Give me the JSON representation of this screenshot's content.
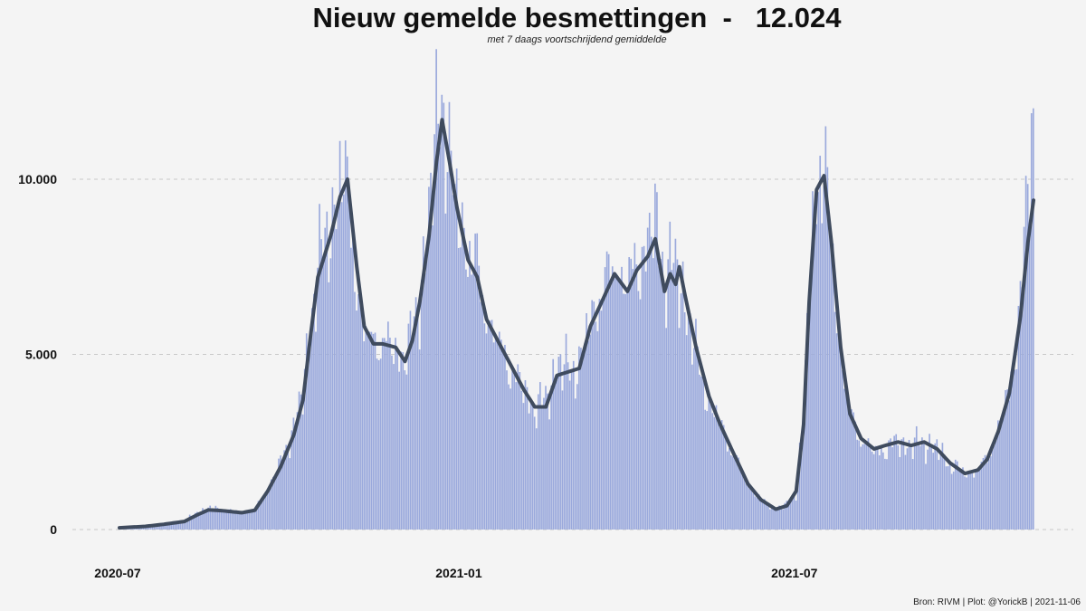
{
  "title": "Nieuw gemelde besmettingen  -   12.024",
  "subtitle": "met 7 daags voortschrijdend gemiddelde",
  "source": "Bron: RIVM | Plot: @YorickB |  2021-11-06",
  "colors": {
    "bars": "#9aa9dc",
    "line": "#3f4b5e",
    "background": "#f4f4f4",
    "grid": "#c8c8c8"
  },
  "chart_data": {
    "type": "bar",
    "title": "Nieuw gemelde besmettingen  -   12.024",
    "subtitle": "met 7 daags voortschrijdend gemiddelde",
    "xlabel": "",
    "ylabel": "",
    "x_range": [
      "2020-07-01",
      "2021-11-06"
    ],
    "ylim": [
      0,
      13500
    ],
    "grid": "horizontal dashed",
    "x_ticks": [
      {
        "date": "2020-07-01",
        "label": "2020-07"
      },
      {
        "date": "2021-01-01",
        "label": "2021-01"
      },
      {
        "date": "2021-07-01",
        "label": "2021-07"
      }
    ],
    "y_ticks": [
      {
        "value": 0,
        "label": "0"
      },
      {
        "value": 5000,
        "label": "5.000"
      },
      {
        "value": 10000,
        "label": "10.000"
      }
    ],
    "series": [
      {
        "kind": "bar",
        "description": "daily reported infections (approximate daily values)",
        "points": [
          [
            "2020-07-01",
            60
          ],
          [
            "2020-07-15",
            90
          ],
          [
            "2020-07-25",
            150
          ],
          [
            "2020-08-05",
            250
          ],
          [
            "2020-08-12",
            480
          ],
          [
            "2020-08-18",
            620
          ],
          [
            "2020-08-25",
            560
          ],
          [
            "2020-09-05",
            500
          ],
          [
            "2020-09-12",
            560
          ],
          [
            "2020-09-19",
            1150
          ],
          [
            "2020-09-26",
            1900
          ],
          [
            "2020-10-03",
            2900
          ],
          [
            "2020-10-08",
            3900
          ],
          [
            "2020-10-12",
            5800
          ],
          [
            "2020-10-16",
            7600
          ],
          [
            "2020-10-23",
            8600
          ],
          [
            "2020-10-28",
            10200
          ],
          [
            "2020-11-02",
            9400
          ],
          [
            "2020-11-06",
            7000
          ],
          [
            "2020-11-10",
            5600
          ],
          [
            "2020-11-15",
            5500
          ],
          [
            "2020-11-20",
            5300
          ],
          [
            "2020-11-27",
            5200
          ],
          [
            "2020-12-02",
            4900
          ],
          [
            "2020-12-06",
            5600
          ],
          [
            "2020-12-10",
            6700
          ],
          [
            "2020-12-15",
            8900
          ],
          [
            "2020-12-19",
            11500
          ],
          [
            "2020-12-22",
            12500
          ],
          [
            "2020-12-26",
            10500
          ],
          [
            "2020-12-30",
            9200
          ],
          [
            "2021-01-05",
            8000
          ],
          [
            "2021-01-10",
            7500
          ],
          [
            "2021-01-15",
            6100
          ],
          [
            "2021-01-22",
            5300
          ],
          [
            "2021-01-28",
            4600
          ],
          [
            "2021-02-04",
            4000
          ],
          [
            "2021-02-10",
            3500
          ],
          [
            "2021-02-16",
            3700
          ],
          [
            "2021-02-22",
            4700
          ],
          [
            "2021-02-28",
            4600
          ],
          [
            "2021-03-06",
            4700
          ],
          [
            "2021-03-12",
            5900
          ],
          [
            "2021-03-19",
            6900
          ],
          [
            "2021-03-25",
            7600
          ],
          [
            "2021-04-01",
            7000
          ],
          [
            "2021-04-06",
            7600
          ],
          [
            "2021-04-12",
            8100
          ],
          [
            "2021-04-16",
            8900
          ],
          [
            "2021-04-21",
            7400
          ],
          [
            "2021-04-26",
            7600
          ],
          [
            "2021-05-02",
            6600
          ],
          [
            "2021-05-08",
            5000
          ],
          [
            "2021-05-15",
            3700
          ],
          [
            "2021-05-21",
            3000
          ],
          [
            "2021-05-28",
            2200
          ],
          [
            "2021-06-05",
            1300
          ],
          [
            "2021-06-12",
            850
          ],
          [
            "2021-06-20",
            600
          ],
          [
            "2021-06-26",
            700
          ],
          [
            "2021-07-01",
            1100
          ],
          [
            "2021-07-05",
            3200
          ],
          [
            "2021-07-08",
            6800
          ],
          [
            "2021-07-12",
            10000
          ],
          [
            "2021-07-16",
            10400
          ],
          [
            "2021-07-20",
            8200
          ],
          [
            "2021-07-25",
            5100
          ],
          [
            "2021-07-30",
            3300
          ],
          [
            "2021-08-05",
            2600
          ],
          [
            "2021-08-12",
            2200
          ],
          [
            "2021-08-18",
            2300
          ],
          [
            "2021-08-25",
            2500
          ],
          [
            "2021-09-01",
            2400
          ],
          [
            "2021-09-08",
            2500
          ],
          [
            "2021-09-15",
            2300
          ],
          [
            "2021-09-22",
            1900
          ],
          [
            "2021-09-30",
            1600
          ],
          [
            "2021-10-07",
            1700
          ],
          [
            "2021-10-12",
            2000
          ],
          [
            "2021-10-18",
            2900
          ],
          [
            "2021-10-24",
            3900
          ],
          [
            "2021-10-30",
            6500
          ],
          [
            "2021-11-03",
            9800
          ],
          [
            "2021-11-06",
            12024
          ]
        ]
      },
      {
        "kind": "line",
        "description": "7-day rolling average",
        "points": [
          [
            "2020-07-01",
            50
          ],
          [
            "2020-07-15",
            90
          ],
          [
            "2020-07-25",
            150
          ],
          [
            "2020-08-05",
            230
          ],
          [
            "2020-08-12",
            420
          ],
          [
            "2020-08-18",
            560
          ],
          [
            "2020-08-25",
            540
          ],
          [
            "2020-09-05",
            480
          ],
          [
            "2020-09-12",
            550
          ],
          [
            "2020-09-19",
            1100
          ],
          [
            "2020-09-26",
            1800
          ],
          [
            "2020-10-03",
            2700
          ],
          [
            "2020-10-08",
            3700
          ],
          [
            "2020-10-12",
            5500
          ],
          [
            "2020-10-16",
            7200
          ],
          [
            "2020-10-23",
            8400
          ],
          [
            "2020-10-28",
            9500
          ],
          [
            "2020-11-01",
            10000
          ],
          [
            "2020-11-06",
            7500
          ],
          [
            "2020-11-10",
            5800
          ],
          [
            "2020-11-15",
            5300
          ],
          [
            "2020-11-20",
            5300
          ],
          [
            "2020-11-27",
            5200
          ],
          [
            "2020-12-02",
            4800
          ],
          [
            "2020-12-06",
            5400
          ],
          [
            "2020-12-10",
            6500
          ],
          [
            "2020-12-15",
            8400
          ],
          [
            "2020-12-19",
            10500
          ],
          [
            "2020-12-22",
            11700
          ],
          [
            "2020-12-26",
            10500
          ],
          [
            "2020-12-30",
            9200
          ],
          [
            "2021-01-05",
            7700
          ],
          [
            "2021-01-10",
            7200
          ],
          [
            "2021-01-15",
            6000
          ],
          [
            "2021-01-22",
            5300
          ],
          [
            "2021-01-28",
            4700
          ],
          [
            "2021-02-04",
            4000
          ],
          [
            "2021-02-10",
            3500
          ],
          [
            "2021-02-16",
            3500
          ],
          [
            "2021-02-22",
            4400
          ],
          [
            "2021-02-28",
            4500
          ],
          [
            "2021-03-06",
            4600
          ],
          [
            "2021-03-12",
            5800
          ],
          [
            "2021-03-19",
            6600
          ],
          [
            "2021-03-25",
            7300
          ],
          [
            "2021-04-01",
            6800
          ],
          [
            "2021-04-06",
            7400
          ],
          [
            "2021-04-12",
            7800
          ],
          [
            "2021-04-16",
            8300
          ],
          [
            "2021-04-21",
            6800
          ],
          [
            "2021-04-24",
            7300
          ],
          [
            "2021-04-27",
            7000
          ],
          [
            "2021-04-29",
            7500
          ],
          [
            "2021-05-02",
            6700
          ],
          [
            "2021-05-08",
            5200
          ],
          [
            "2021-05-15",
            3800
          ],
          [
            "2021-05-21",
            3000
          ],
          [
            "2021-05-28",
            2200
          ],
          [
            "2021-06-05",
            1300
          ],
          [
            "2021-06-12",
            850
          ],
          [
            "2021-06-20",
            580
          ],
          [
            "2021-06-26",
            680
          ],
          [
            "2021-07-01",
            1100
          ],
          [
            "2021-07-05",
            3000
          ],
          [
            "2021-07-08",
            6500
          ],
          [
            "2021-07-12",
            9700
          ],
          [
            "2021-07-16",
            10100
          ],
          [
            "2021-07-20",
            8200
          ],
          [
            "2021-07-25",
            5200
          ],
          [
            "2021-07-30",
            3300
          ],
          [
            "2021-08-05",
            2600
          ],
          [
            "2021-08-12",
            2300
          ],
          [
            "2021-08-18",
            2400
          ],
          [
            "2021-08-25",
            2500
          ],
          [
            "2021-09-01",
            2400
          ],
          [
            "2021-09-08",
            2500
          ],
          [
            "2021-09-15",
            2300
          ],
          [
            "2021-09-22",
            1900
          ],
          [
            "2021-09-30",
            1600
          ],
          [
            "2021-10-07",
            1700
          ],
          [
            "2021-10-12",
            2000
          ],
          [
            "2021-10-18",
            2800
          ],
          [
            "2021-10-24",
            3900
          ],
          [
            "2021-10-30",
            6100
          ],
          [
            "2021-11-03",
            8200
          ],
          [
            "2021-11-06",
            9400
          ]
        ]
      }
    ]
  }
}
